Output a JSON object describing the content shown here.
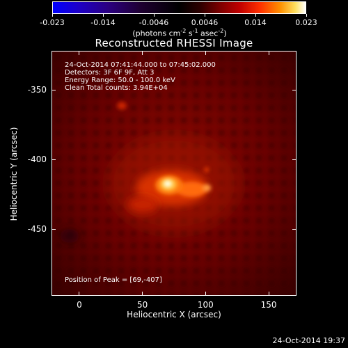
{
  "colorbar": {
    "ticks": [
      "-0.023",
      "-0.014",
      "-0.0046",
      "0.0046",
      "0.014",
      "0.023"
    ],
    "units_prefix": "(photons cm",
    "units_exp1": "-2",
    "units_mid1": " s",
    "units_exp2": "-1",
    "units_mid2": " asec",
    "units_exp3": "-2",
    "units_suffix": ")"
  },
  "image": {
    "title": "Reconstructed RHESSI Image",
    "info": [
      "24-Oct-2014 07:41:44.000 to 07:45:02.000",
      "Detectors: 3F 6F 9F, Att 3",
      "Energy Range: 50.0 - 100.0 keV",
      "Clean    Total counts: 3.94E+04"
    ],
    "peak_text": "Position of Peak = [69,-407]",
    "peak_position": [
      69,
      -407
    ]
  },
  "axes": {
    "xlabel": "Heliocentric X (arcsec)",
    "ylabel": "Heliocentric Y (arcsec)",
    "xticks": [
      "0",
      "50",
      "100",
      "150"
    ],
    "xtick_values": [
      0,
      50,
      100,
      150
    ],
    "yticks": [
      "-350",
      "-400",
      "-450"
    ],
    "ytick_values": [
      -350,
      -400,
      -450
    ],
    "xlim": [
      -22,
      172
    ],
    "ylim": [
      -498,
      -322
    ]
  },
  "footer": {
    "timestamp": "24-Oct-2014 19:37"
  }
}
